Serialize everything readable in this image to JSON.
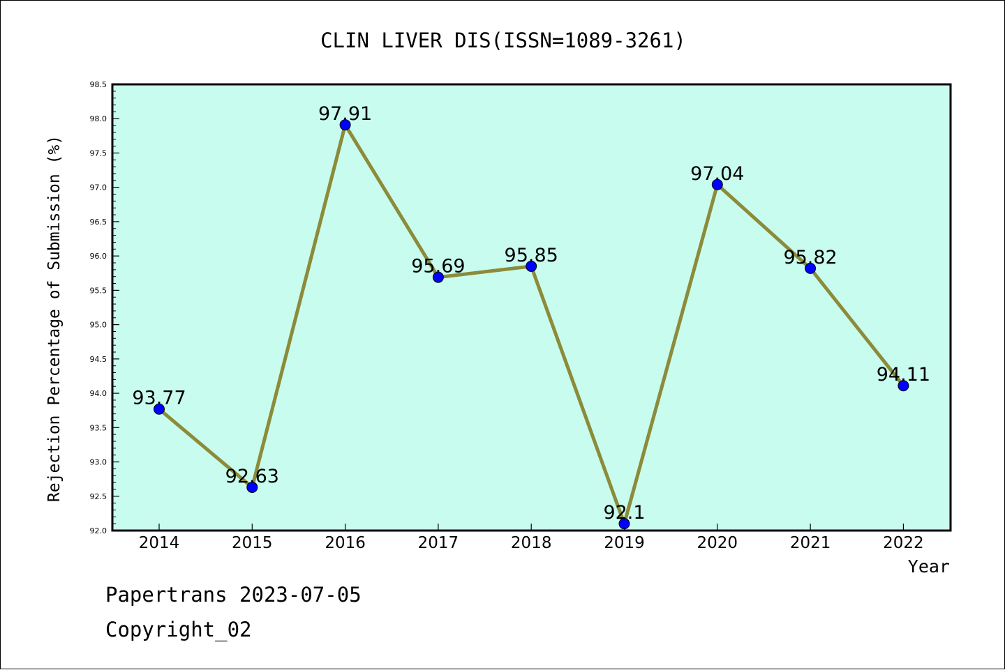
{
  "chart_data": {
    "type": "line",
    "title": "CLIN LIVER DIS(ISSN=1089-3261)",
    "xlabel": "Year",
    "ylabel": "Rejection Percentage of Submission (%)",
    "categories": [
      "2014",
      "2015",
      "2016",
      "2017",
      "2018",
      "2019",
      "2020",
      "2021",
      "2022"
    ],
    "values": [
      93.77,
      92.63,
      97.91,
      95.69,
      95.85,
      92.1,
      97.04,
      95.82,
      94.11
    ],
    "data_labels": [
      "93.77",
      "92.63",
      "97.91",
      "95.69",
      "95.85",
      "92.1",
      "97.04",
      "95.82",
      "94.11"
    ],
    "ylim": [
      92.0,
      98.5
    ],
    "yticks": [
      "92.0",
      "92.5",
      "93.0",
      "93.5",
      "94.0",
      "94.5",
      "95.0",
      "95.5",
      "96.0",
      "96.5",
      "97.0",
      "97.5",
      "98.0",
      "98.5"
    ],
    "grid": false,
    "legend": "none",
    "colors": {
      "plot_background": "#c8fcee",
      "line": "#8b8b3a",
      "marker": "#0000ff",
      "axis": "#000000"
    }
  },
  "footer": {
    "line1": "Papertrans 2023-07-05",
    "line2": "Copyright_02"
  }
}
